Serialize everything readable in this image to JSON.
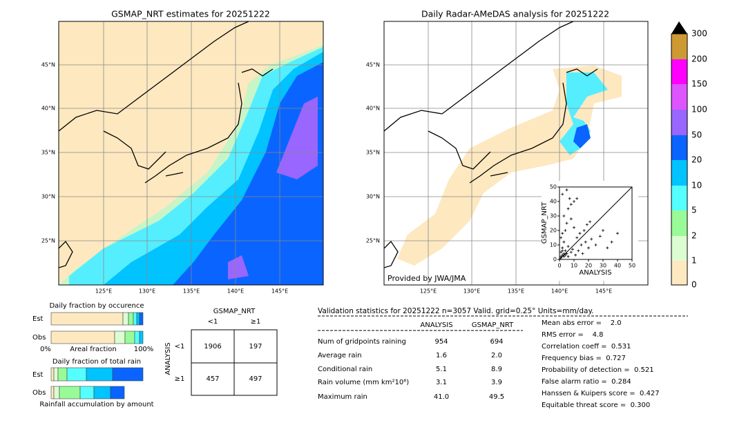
{
  "left_map": {
    "title": "GSMAP_NRT estimates for 20251222",
    "lat_labels": [
      "45°N",
      "40°N",
      "35°N",
      "30°N",
      "25°N"
    ],
    "lon_labels": [
      "125°E",
      "130°E",
      "135°E",
      "140°E",
      "145°E"
    ]
  },
  "right_map": {
    "title": "Daily Radar-AMeDAS analysis for 20251222",
    "lat_labels": [
      "45°N",
      "40°N",
      "35°N",
      "30°N",
      "25°N"
    ],
    "lon_labels": [
      "125°E",
      "130°E",
      "135°E",
      "140°E",
      "145°E"
    ],
    "credit": "Provided by JWA/JMA"
  },
  "colorbar": {
    "labels": [
      "0",
      "1",
      "2",
      "5",
      "10",
      "20",
      "50",
      "100",
      "150",
      "200",
      "300"
    ]
  },
  "inset": {
    "xlabel": "ANALYSIS",
    "ylabel": "GSMAP_NRT",
    "xlim": [
      0,
      50
    ],
    "ylim": [
      0,
      50
    ],
    "ticks": [
      0,
      10,
      20,
      30,
      40,
      50
    ],
    "points": [
      [
        1,
        1
      ],
      [
        2,
        3
      ],
      [
        1,
        5
      ],
      [
        3,
        2
      ],
      [
        4,
        6
      ],
      [
        2,
        8
      ],
      [
        5,
        4
      ],
      [
        6,
        9
      ],
      [
        3,
        12
      ],
      [
        1,
        15
      ],
      [
        2,
        18
      ],
      [
        4,
        20
      ],
      [
        5,
        25
      ],
      [
        3,
        30
      ],
      [
        6,
        35
      ],
      [
        8,
        38
      ],
      [
        10,
        40
      ],
      [
        12,
        42
      ],
      [
        8,
        28
      ],
      [
        10,
        22
      ],
      [
        12,
        15
      ],
      [
        14,
        18
      ],
      [
        15,
        10
      ],
      [
        18,
        12
      ],
      [
        20,
        8
      ],
      [
        22,
        14
      ],
      [
        25,
        10
      ],
      [
        28,
        16
      ],
      [
        30,
        20
      ],
      [
        33,
        8
      ],
      [
        36,
        12
      ],
      [
        40,
        18
      ],
      [
        2,
        45
      ],
      [
        5,
        48
      ],
      [
        7,
        42
      ],
      [
        1,
        2
      ],
      [
        3,
        4
      ],
      [
        2,
        6
      ],
      [
        4,
        3
      ],
      [
        6,
        2
      ],
      [
        8,
        5
      ],
      [
        9,
        7
      ],
      [
        11,
        3
      ],
      [
        13,
        6
      ],
      [
        16,
        4
      ],
      [
        17,
        20
      ],
      [
        19,
        24
      ],
      [
        21,
        26
      ]
    ]
  },
  "fraction": {
    "occurrence_title": "Daily fraction by occurence",
    "est": "Est",
    "obs": "Obs",
    "axis_min": "0%",
    "axis_label": "Areal fraction",
    "axis_max": "100%",
    "total_title": "Daily fraction of total rain",
    "total_caption": "Rainfall accumulation by amount"
  },
  "contingency": {
    "col_title": "GSMAP_NRT",
    "row_title": "ANALYSIS",
    "lt": "<1",
    "ge": "≥1",
    "rows": [
      [
        "1906",
        "197"
      ],
      [
        "457",
        "497"
      ]
    ]
  },
  "validation": {
    "header": "Validation statistics for 20251222  n=3057 Valid. grid=0.25° Units=mm/day.",
    "col_a": "ANALYSIS",
    "col_b": "GSMAP_NRT",
    "rows": [
      [
        "Num of gridpoints raining",
        "954",
        "694"
      ],
      [
        "Average rain",
        "1.6",
        "2.0"
      ],
      [
        "Conditional rain",
        "5.1",
        "8.9"
      ],
      [
        "Rain volume (mm km²10⁶)",
        "3.1",
        "3.9"
      ],
      [
        "Maximum rain",
        "41.0",
        "49.5"
      ]
    ],
    "scores": [
      "Mean abs error =    2.0",
      "RMS error =    4.8",
      "Correlation coeff =  0.531",
      "Frequency bias =  0.727",
      "Probability of detection =  0.521",
      "False alarm ratio =  0.284",
      "Hanssen & Kuipers score =  0.427",
      "Equitable threat score =  0.300"
    ]
  }
}
